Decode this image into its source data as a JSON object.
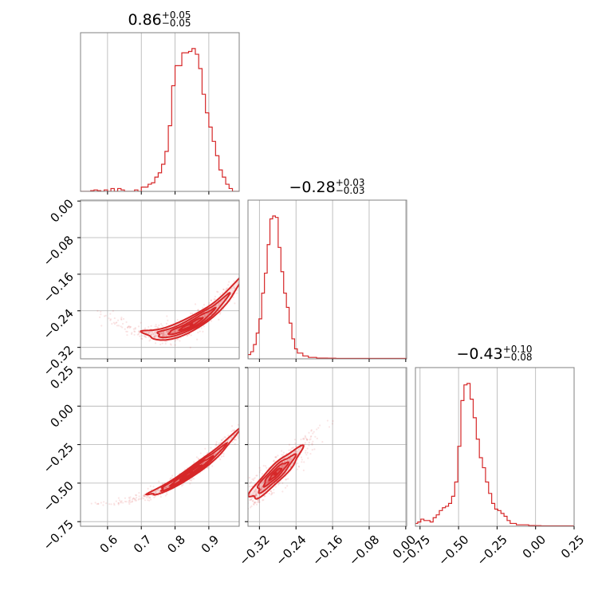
{
  "chart_data": {
    "type": "corner",
    "color": "#d62728",
    "grid": true,
    "parameters": [
      {
        "title_median": "0.86",
        "title_plus": "+0.05",
        "title_minus": "−0.05",
        "ticks": [
          0.6,
          0.7,
          0.8,
          0.9
        ],
        "tick_labels": [
          "0.6",
          "0.7",
          "0.8",
          "0.9"
        ],
        "range": [
          0.52,
          0.99
        ],
        "hist_x": [
          0.525,
          0.535,
          0.545,
          0.555,
          0.565,
          0.575,
          0.585,
          0.595,
          0.605,
          0.615,
          0.625,
          0.635,
          0.645,
          0.655,
          0.665,
          0.675,
          0.685,
          0.695,
          0.705,
          0.715,
          0.725,
          0.735,
          0.745,
          0.755,
          0.765,
          0.775,
          0.785,
          0.795,
          0.805,
          0.815,
          0.825,
          0.835,
          0.845,
          0.855,
          0.865,
          0.875,
          0.885,
          0.895,
          0.905,
          0.915,
          0.925,
          0.935,
          0.945,
          0.955,
          0.965,
          0.975,
          0.985
        ],
        "hist_y": [
          0,
          0,
          0,
          0.005,
          0.01,
          0.005,
          0,
          0.01,
          0,
          0.02,
          0,
          0.02,
          0.01,
          0,
          0,
          0,
          0.01,
          0,
          0.03,
          0.03,
          0.05,
          0.06,
          0.1,
          0.13,
          0.19,
          0.28,
          0.46,
          0.74,
          0.88,
          0.88,
          0.97,
          0.97,
          0.98,
          1.0,
          0.96,
          0.86,
          0.68,
          0.55,
          0.45,
          0.35,
          0.25,
          0.15,
          0.1,
          0.05,
          0.02,
          0,
          0
        ]
      },
      {
        "title_median": "−0.28",
        "title_plus": "+0.03",
        "title_minus": "−0.03",
        "ticks": [
          -0.32,
          -0.24,
          -0.16,
          -0.08,
          0.0
        ],
        "tick_labels": [
          "−0.32",
          "−0.24",
          "−0.16",
          "−0.08",
          "0.00"
        ],
        "range": [
          -0.345,
          0.002
        ],
        "hist_x": [
          -0.342,
          -0.336,
          -0.33,
          -0.324,
          -0.318,
          -0.312,
          -0.306,
          -0.3,
          -0.294,
          -0.288,
          -0.282,
          -0.276,
          -0.27,
          -0.264,
          -0.258,
          -0.252,
          -0.246,
          -0.24,
          -0.234,
          -0.228,
          -0.222,
          -0.216,
          -0.21,
          -0.204,
          -0.198,
          -0.192,
          -0.186,
          -0.18,
          -0.174,
          -0.168,
          -0.162,
          -0.156,
          -0.15,
          -0.144,
          -0.138,
          -0.132,
          -0.126,
          -0.12,
          -0.114,
          -0.108,
          -0.102,
          -0.096,
          -0.09,
          -0.084,
          -0.078,
          -0.072,
          -0.066,
          -0.06,
          -0.054,
          -0.048,
          -0.042,
          -0.036,
          -0.03,
          -0.024,
          -0.018,
          -0.012,
          -0.006,
          0.0
        ],
        "hist_y": [
          0.03,
          0.05,
          0.1,
          0.18,
          0.28,
          0.46,
          0.6,
          0.8,
          0.98,
          1.0,
          0.99,
          0.78,
          0.61,
          0.46,
          0.36,
          0.25,
          0.14,
          0.07,
          0.04,
          0.04,
          0.02,
          0.02,
          0.01,
          0.01,
          0.01,
          0.005,
          0.005,
          0.005,
          0.005,
          0.004,
          0.004,
          0.004,
          0.003,
          0.003,
          0.003,
          0.003,
          0.003,
          0.003,
          0.003,
          0.003,
          0.003,
          0.003,
          0.003,
          0.003,
          0.003,
          0.003,
          0.003,
          0.003,
          0.003,
          0.003,
          0.003,
          0.003,
          0.003,
          0.003,
          0.003,
          0.003,
          0.003,
          0.003
        ]
      },
      {
        "title_median": "−0.43",
        "title_plus": "+0.10",
        "title_minus": "−0.08",
        "ticks": [
          -0.75,
          -0.5,
          -0.25,
          0.0,
          0.25
        ],
        "tick_labels": [
          "−0.75",
          "−0.50",
          "−0.25",
          "0.00",
          "0.25"
        ],
        "range": [
          -0.78,
          0.25
        ],
        "hist_x": [
          -0.775,
          -0.755,
          -0.735,
          -0.715,
          -0.695,
          -0.675,
          -0.655,
          -0.635,
          -0.615,
          -0.595,
          -0.575,
          -0.555,
          -0.535,
          -0.515,
          -0.495,
          -0.475,
          -0.455,
          -0.435,
          -0.415,
          -0.395,
          -0.375,
          -0.355,
          -0.335,
          -0.315,
          -0.295,
          -0.275,
          -0.255,
          -0.235,
          -0.215,
          -0.195,
          -0.175,
          -0.155,
          -0.135,
          -0.115,
          -0.095,
          -0.075,
          -0.055,
          -0.035,
          -0.015,
          0.005,
          0.025,
          0.045,
          0.065,
          0.085,
          0.105,
          0.125,
          0.145,
          0.165,
          0.185,
          0.205,
          0.225,
          0.245
        ],
        "hist_y": [
          0.02,
          0.03,
          0.05,
          0.04,
          0.04,
          0.03,
          0.06,
          0.08,
          0.11,
          0.13,
          0.14,
          0.16,
          0.21,
          0.31,
          0.56,
          0.88,
          0.99,
          1.0,
          0.89,
          0.76,
          0.61,
          0.48,
          0.41,
          0.31,
          0.23,
          0.16,
          0.12,
          0.11,
          0.09,
          0.07,
          0.04,
          0.02,
          0.02,
          0.01,
          0.01,
          0.01,
          0.01,
          0.005,
          0.005,
          0.004,
          0.004,
          0.003,
          0.003,
          0.003,
          0.003,
          0.003,
          0.003,
          0.003,
          0.003,
          0.003,
          0.003,
          0.003
        ]
      }
    ],
    "pairs": [
      {
        "x_param": 0,
        "y_param": 1,
        "center": [
          0.848,
          -0.27
        ],
        "axis_major": [
          0.084,
          0.033
        ],
        "axis_minor": [
          -0.004,
          0.008
        ],
        "scatter_extent": [
          0.56,
          0.99
        ]
      },
      {
        "x_param": 0,
        "y_param": 2,
        "center": [
          0.848,
          -0.43
        ],
        "axis_major": [
          0.075,
          0.115
        ],
        "axis_minor": [
          -0.009,
          0.006
        ],
        "scatter_extent": [
          0.55,
          0.99
        ]
      },
      {
        "x_param": 1,
        "y_param": 2,
        "center": [
          -0.285,
          -0.44
        ],
        "axis_major": [
          0.03,
          0.095
        ],
        "axis_minor": [
          -0.012,
          0.004
        ],
        "scatter_extent": [
          -0.35,
          -0.19
        ]
      }
    ],
    "levels": [
      0.4,
      0.8,
      1.25,
      1.75
    ]
  }
}
